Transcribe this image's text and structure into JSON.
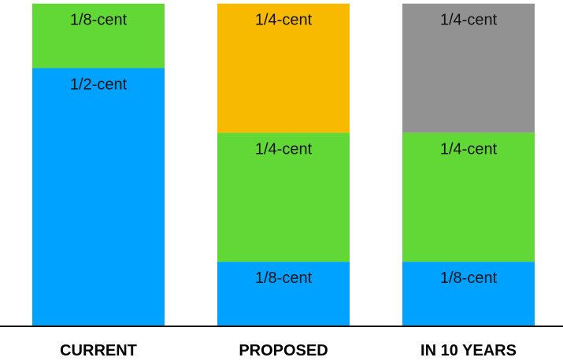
{
  "chart_data": {
    "type": "bar",
    "stacked": true,
    "title": "",
    "xlabel": "",
    "ylabel": "",
    "ylim": [
      0,
      1
    ],
    "grid": false,
    "legend": "none",
    "categories": [
      "CURRENT",
      "PROPOSED",
      "IN 10 YEARS"
    ],
    "stacks": [
      {
        "category": "CURRENT",
        "segments": [
          {
            "label": "1/2-cent",
            "value": 0.5,
            "color": "#00A2FF"
          },
          {
            "label": "1/8-cent",
            "value": 0.125,
            "color": "#61D836"
          }
        ]
      },
      {
        "category": "PROPOSED",
        "segments": [
          {
            "label": "1/8-cent",
            "value": 0.125,
            "color": "#00A2FF"
          },
          {
            "label": "1/4-cent",
            "value": 0.25,
            "color": "#61D836"
          },
          {
            "label": "1/4-cent",
            "value": 0.25,
            "color": "#F8BA00"
          }
        ]
      },
      {
        "category": "IN 10 YEARS",
        "segments": [
          {
            "label": "1/8-cent",
            "value": 0.125,
            "color": "#00A2FF"
          },
          {
            "label": "1/4-cent",
            "value": 0.25,
            "color": "#61D836"
          },
          {
            "label": "1/4-cent",
            "value": 0.25,
            "color": "#929292"
          }
        ]
      }
    ]
  }
}
